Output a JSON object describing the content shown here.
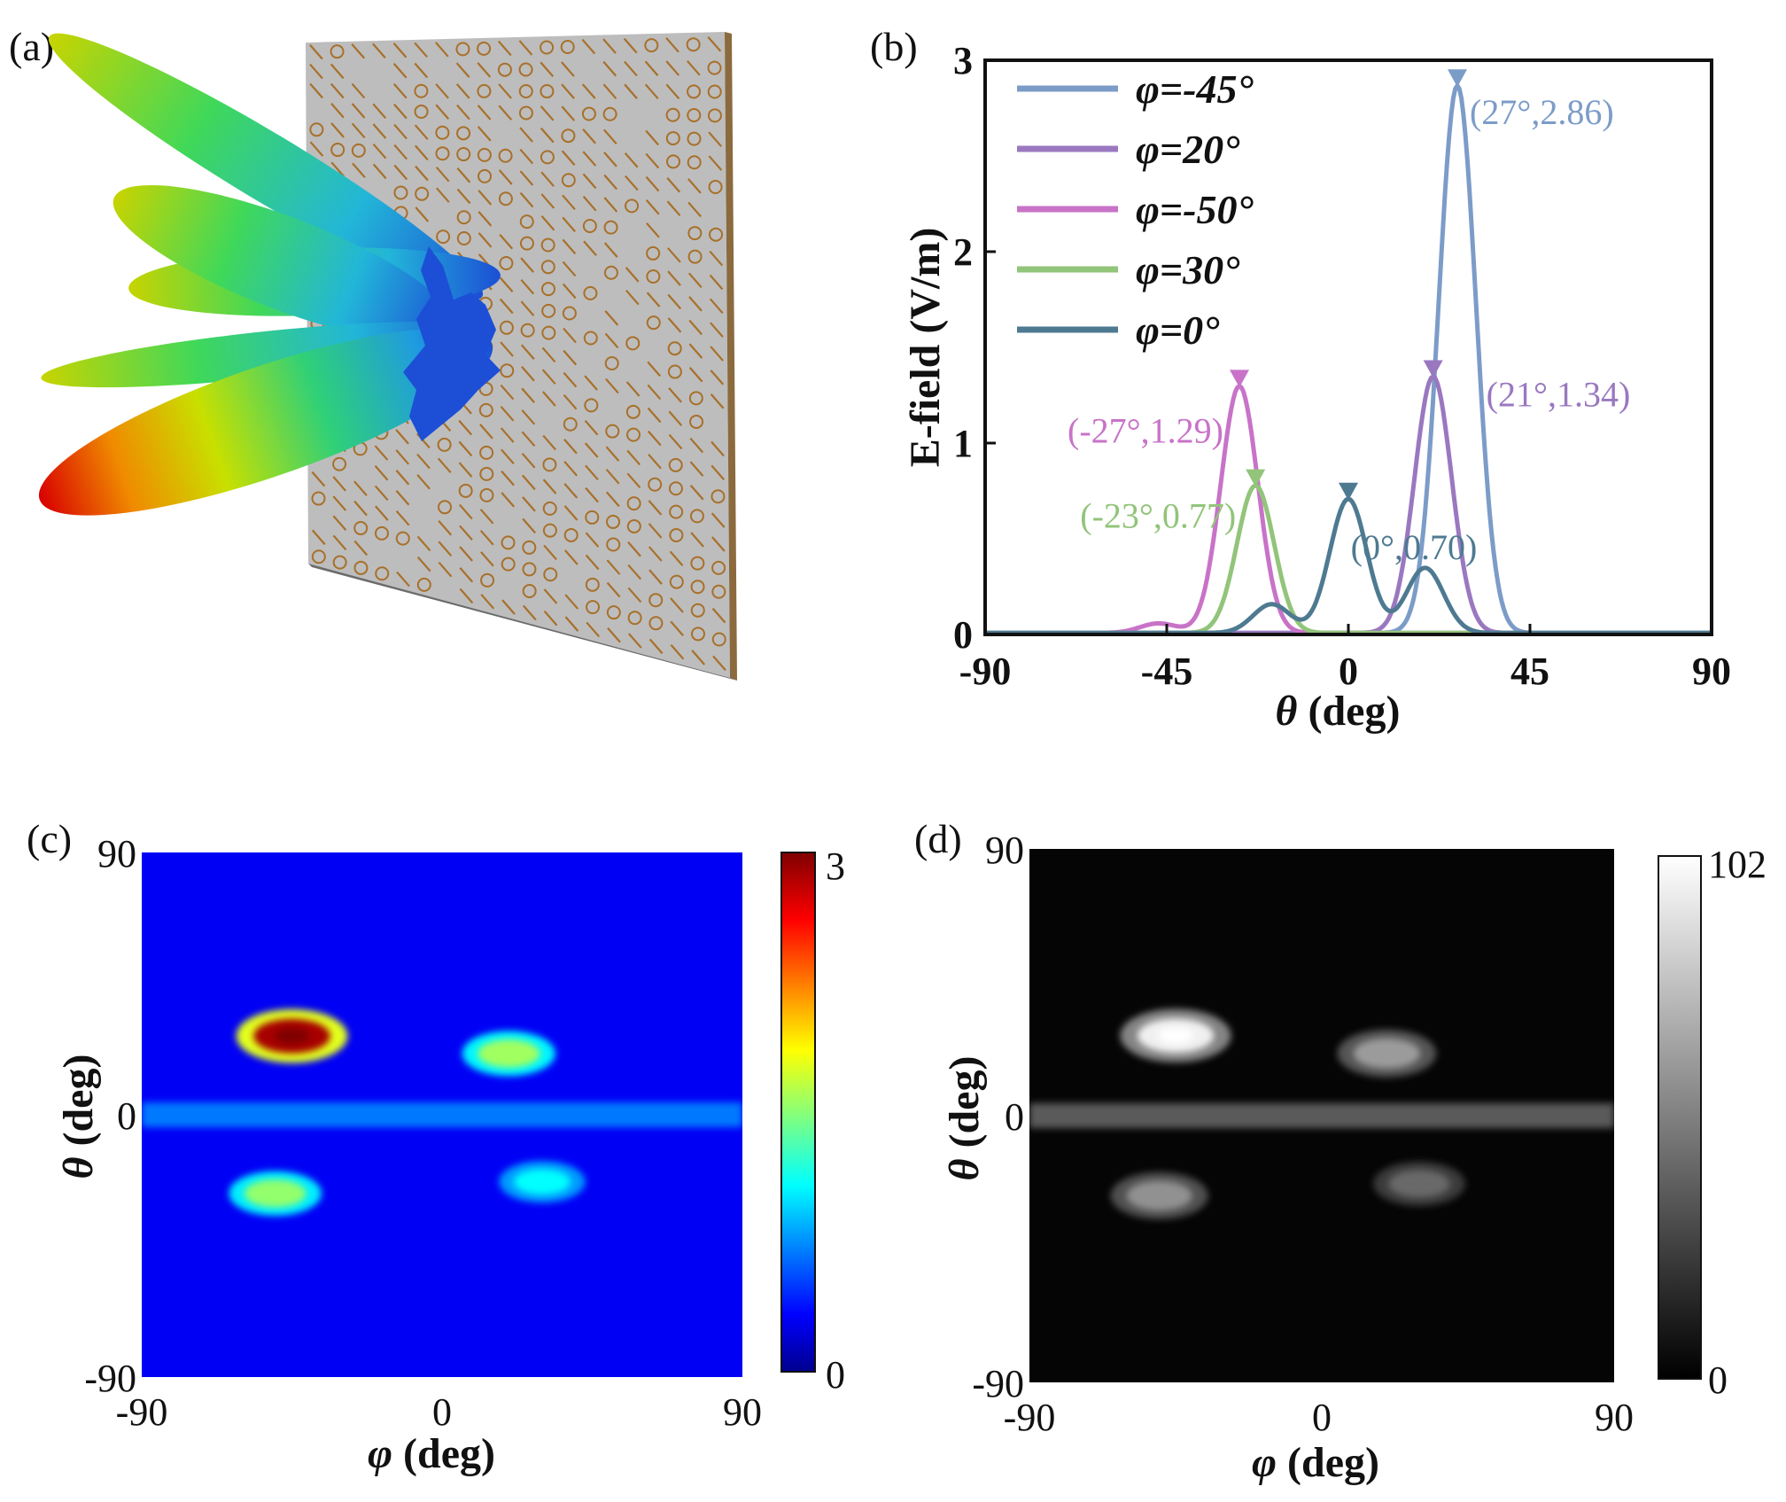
{
  "panels": {
    "a": {
      "label": "(a)"
    },
    "b": {
      "label": "(b)"
    },
    "c": {
      "label": "(c)"
    },
    "d": {
      "label": "(d)"
    }
  },
  "colors": {
    "phi_m45": "#7c9cc8",
    "phi_20": "#9a78c0",
    "phi_m50": "#c873c8",
    "phi_30": "#92c47a",
    "phi_0": "#4e7a91",
    "board": "#c9c9c9",
    "element": "#a8702a"
  },
  "chart_data": [
    {
      "id": "b",
      "type": "line",
      "title": "",
      "xlabel_symbol": "θ",
      "xlabel_unit": " (deg)",
      "ylabel": "E-field (V/m)",
      "xlim": [
        -90,
        90
      ],
      "ylim": [
        0,
        3
      ],
      "xticks": [
        -90,
        -45,
        0,
        45,
        90
      ],
      "yticks": [
        0,
        1,
        2,
        3
      ],
      "legend_position": "top-left",
      "series": [
        {
          "key": "phi_m45",
          "name": "φ=-45°",
          "peaks": [
            [
              27,
              2.86
            ]
          ],
          "sidelobes": []
        },
        {
          "key": "phi_20",
          "name": "φ=20°",
          "peaks": [
            [
              21,
              1.34
            ]
          ],
          "sidelobes": []
        },
        {
          "key": "phi_m50",
          "name": "φ=-50°",
          "peaks": [
            [
              -27,
              1.29
            ]
          ],
          "sidelobes": [
            [
              -47,
              0.05
            ]
          ]
        },
        {
          "key": "phi_30",
          "name": "φ=30°",
          "peaks": [
            [
              -23,
              0.77
            ]
          ],
          "sidelobes": []
        },
        {
          "key": "phi_0",
          "name": "φ=0°",
          "peaks": [
            [
              0,
              0.7
            ]
          ],
          "sidelobes": [
            [
              -19,
              0.15
            ],
            [
              19,
              0.34
            ]
          ]
        }
      ],
      "annotations": [
        {
          "text": "(27°,2.86)",
          "series": "phi_m45",
          "x": 27,
          "y": 2.86
        },
        {
          "text": "(21°,1.34)",
          "series": "phi_20",
          "x": 21,
          "y": 1.34
        },
        {
          "text": "(-27°,1.29)",
          "series": "phi_m50",
          "x": -27,
          "y": 1.29
        },
        {
          "text": "(0°,0.70)",
          "series": "phi_0",
          "x": 0,
          "y": 0.7
        },
        {
          "text": "(-23°,0.77)",
          "series": "phi_30",
          "x": -23,
          "y": 0.77
        }
      ]
    },
    {
      "id": "c",
      "type": "heatmap",
      "colormap": "jet",
      "xlabel_symbol": "φ",
      "xlabel_unit": " (deg)",
      "ylabel_symbol": "θ",
      "ylabel_unit": " (deg)",
      "xlim": [
        -90,
        90
      ],
      "ylim": [
        -90,
        90
      ],
      "xticks": [
        -90,
        0,
        90
      ],
      "yticks": [
        -90,
        0,
        90
      ],
      "colorbar": {
        "min": 0,
        "max": 3,
        "min_label": "0",
        "max_label": "3"
      },
      "spots": [
        {
          "phi": -45,
          "theta": 27,
          "value": 2.86
        },
        {
          "phi": 20,
          "theta": 21,
          "value": 1.34
        },
        {
          "phi": -50,
          "theta": -27,
          "value": 1.29
        },
        {
          "phi": 30,
          "theta": -23,
          "value": 0.77
        }
      ],
      "band": {
        "theta": 0,
        "value": 0.7
      }
    },
    {
      "id": "d",
      "type": "heatmap",
      "colormap": "gray",
      "xlabel_symbol": "φ",
      "xlabel_unit": " (deg)",
      "ylabel_symbol": "θ",
      "ylabel_unit": " (deg)",
      "xlim": [
        -90,
        90
      ],
      "ylim": [
        -90,
        90
      ],
      "xticks": [
        -90,
        0,
        90
      ],
      "yticks": [
        -90,
        0,
        90
      ],
      "colorbar": {
        "min": 0,
        "max": 102,
        "min_label": "0",
        "max_label": "102"
      },
      "spots": [
        {
          "phi": -45,
          "theta": 27,
          "value": 96
        },
        {
          "phi": 20,
          "theta": 21,
          "value": 62
        },
        {
          "phi": -50,
          "theta": -27,
          "value": 58
        },
        {
          "phi": 30,
          "theta": -23,
          "value": 42
        }
      ],
      "band": {
        "theta": 0,
        "value": 36
      }
    }
  ]
}
